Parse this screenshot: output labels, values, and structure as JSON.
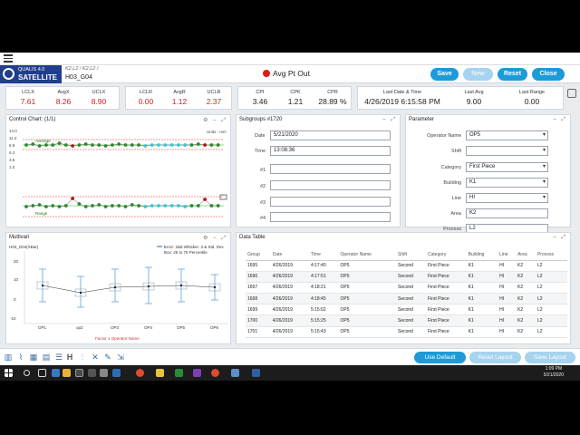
{
  "header": {
    "logo_line1": "QUALIS 4.0",
    "logo_line2": "SATELLITE",
    "code": "K2,L2 / K2,L2 /",
    "subtitle": "H03_G04",
    "alarm": "Avg Pt Out",
    "buttons": [
      "Save",
      "New",
      "Reset",
      "Close"
    ]
  },
  "stats": {
    "lclx": {
      "label": "LCLX",
      "value": "7.61"
    },
    "avgx": {
      "label": "AvgX",
      "value": "8.26"
    },
    "uclx": {
      "label": "UCLX",
      "value": "8.90"
    },
    "lclr": {
      "label": "LCLR",
      "value": "0.00"
    },
    "avgr": {
      "label": "AvgR",
      "value": "1.12"
    },
    "uclr": {
      "label": "UCLR",
      "value": "2.37"
    },
    "cpi": {
      "label": "CPI",
      "value": "3.46"
    },
    "cpk": {
      "label": "CPK",
      "value": "1.21"
    },
    "cpr": {
      "label": "CPR",
      "value": "28.89 %"
    },
    "last_dt": {
      "label": "Last Date & Time",
      "value": "4/26/2019 6:15:58 PM"
    },
    "last_avg": {
      "label": "Last Avg",
      "value": "9.00"
    },
    "last_range": {
      "label": "Last Range",
      "value": "0.00"
    }
  },
  "control_chart": {
    "title": "Control Chart: (1/1)",
    "units": "Units - mm",
    "avg_label": "Average",
    "range_label": "Range",
    "y_ticks": [
      "14.0",
      "11.4",
      "8.8",
      "6.2",
      "3.6",
      "1.0"
    ]
  },
  "subgroups": {
    "title": "Subgroups #1720",
    "date_label": "Date",
    "date_value": "5/21/2020",
    "time_label": "Time",
    "time_value": "13:08:36",
    "rows": [
      "#1",
      "#2",
      "#3",
      "#4"
    ]
  },
  "parameter": {
    "title": "Parameter",
    "fields": [
      {
        "label": "Operator Name",
        "value": "OP5"
      },
      {
        "label": "Shift",
        "value": ""
      },
      {
        "label": "Category",
        "value": "First Piece"
      },
      {
        "label": "Building",
        "value": "K1"
      },
      {
        "label": "Line",
        "value": "HI"
      },
      {
        "label": "Area",
        "value": "K2"
      },
      {
        "label": "Process",
        "value": "L2"
      }
    ]
  },
  "multivari": {
    "title": "Multivari",
    "subtitle": "H03_G04(XBar)",
    "legend1": "Error: 2&8 Whisker: 3 & Std. Dev",
    "legend2": "Box: 25 to 75 Percentile",
    "categories": [
      "OP1",
      "op2",
      "OP3",
      "OP4",
      "OP5",
      "OP6"
    ],
    "y_ticks": [
      "20",
      "10",
      "0",
      "-10"
    ],
    "footer": "Factor 1  Operator Name"
  },
  "data_table": {
    "title": "Data Table",
    "columns": [
      "Group",
      "Date",
      "Time",
      "Operator Name",
      "Shift",
      "Category",
      "Building",
      "Line",
      "Area",
      "Process"
    ],
    "rows": [
      [
        "1695",
        "4/26/2019",
        "4:17:40",
        "OP5",
        "Second",
        "First Piece",
        "K1",
        "HI",
        "K2",
        "L2"
      ],
      [
        "1696",
        "4/26/2019",
        "4:17:51",
        "OP5",
        "Second",
        "First Piece",
        "K1",
        "HI",
        "K2",
        "L2"
      ],
      [
        "1697",
        "4/26/2019",
        "4:18:21",
        "OP5",
        "Second",
        "First Piece",
        "K1",
        "HI",
        "K2",
        "L2"
      ],
      [
        "1698",
        "4/26/2019",
        "4:18:45",
        "OP5",
        "Second",
        "First Piece",
        "K1",
        "HI",
        "K2",
        "L2"
      ],
      [
        "1699",
        "4/26/2019",
        "5:15:02",
        "OP5",
        "Second",
        "First Piece",
        "K1",
        "HI",
        "K2",
        "L2"
      ],
      [
        "1700",
        "4/26/2019",
        "5:15:25",
        "OP5",
        "Second",
        "First Piece",
        "K1",
        "HI",
        "K2",
        "L2"
      ],
      [
        "1701",
        "4/26/2019",
        "5:15:43",
        "OP5",
        "Second",
        "First Piece",
        "K1",
        "HI",
        "K2",
        "L2"
      ]
    ]
  },
  "footer": {
    "buttons": [
      "Use Default",
      "Reset Layout",
      "Save Layout"
    ]
  },
  "taskbar": {
    "time": "1:09 PM",
    "date": "5/21/2020"
  },
  "colors": {
    "brand": "#1f3e8c",
    "accent": "#1d9bd8",
    "alert": "#d41e1e"
  }
}
